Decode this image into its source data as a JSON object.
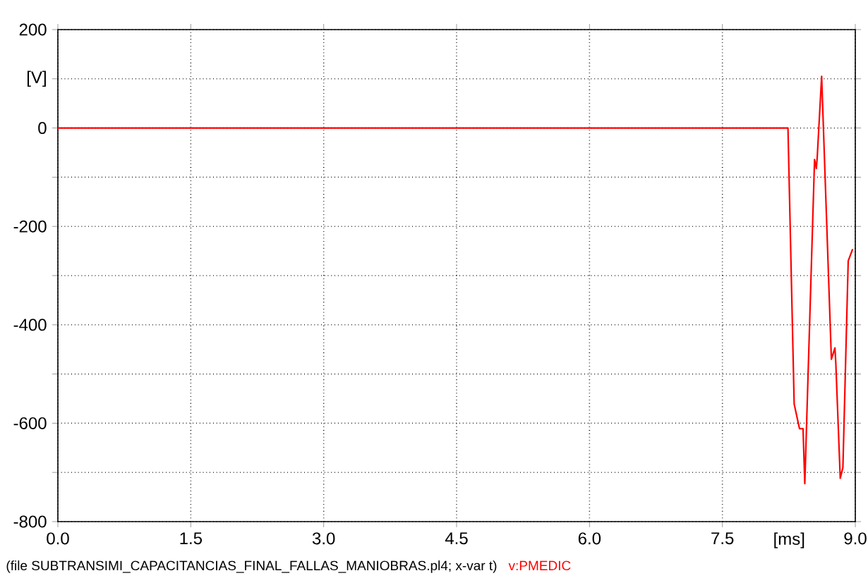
{
  "chart_data": {
    "type": "line",
    "xlabel": "[ms]",
    "ylabel": "[V]",
    "xlim": [
      0,
      9
    ],
    "ylim": [
      -800,
      200
    ],
    "xticks": [
      {
        "value": 0,
        "label": "0.0"
      },
      {
        "value": 1.5,
        "label": "1.5"
      },
      {
        "value": 3,
        "label": "3.0"
      },
      {
        "value": 4.5,
        "label": "4.5"
      },
      {
        "value": 6,
        "label": "6.0"
      },
      {
        "value": 7.5,
        "label": "7.5"
      },
      {
        "value": 9,
        "label": "9.0"
      }
    ],
    "yticks": [
      200,
      {
        "value": 100,
        "label": null
      },
      0,
      {
        "value": -100,
        "label": null
      },
      -200,
      {
        "value": -300,
        "label": null
      },
      -400,
      {
        "value": -500,
        "label": null
      },
      -600,
      {
        "value": -700,
        "label": null
      },
      -800
    ],
    "grid": true,
    "line_style": "solid",
    "marker": "none",
    "annotations": [
      "(file SUBTRANSIMI_CAPACITANCIAS_FINAL_FALLAS_MANIOBRAS.pl4; x-var t)"
    ],
    "series": [
      {
        "name": "v:PMEDIC",
        "color": "#ff0000",
        "x": [
          0,
          8.24,
          8.31,
          8.37,
          8.41,
          8.43,
          8.54,
          8.56,
          8.57,
          8.62,
          8.73,
          8.77,
          8.78,
          8.83,
          8.86,
          8.92,
          8.97
        ],
        "values": [
          0,
          0,
          -561,
          -611,
          -611,
          -723,
          -64,
          -82,
          -60,
          105,
          -470,
          -447,
          -478,
          -712,
          -690,
          -270,
          -246
        ]
      }
    ]
  }
}
